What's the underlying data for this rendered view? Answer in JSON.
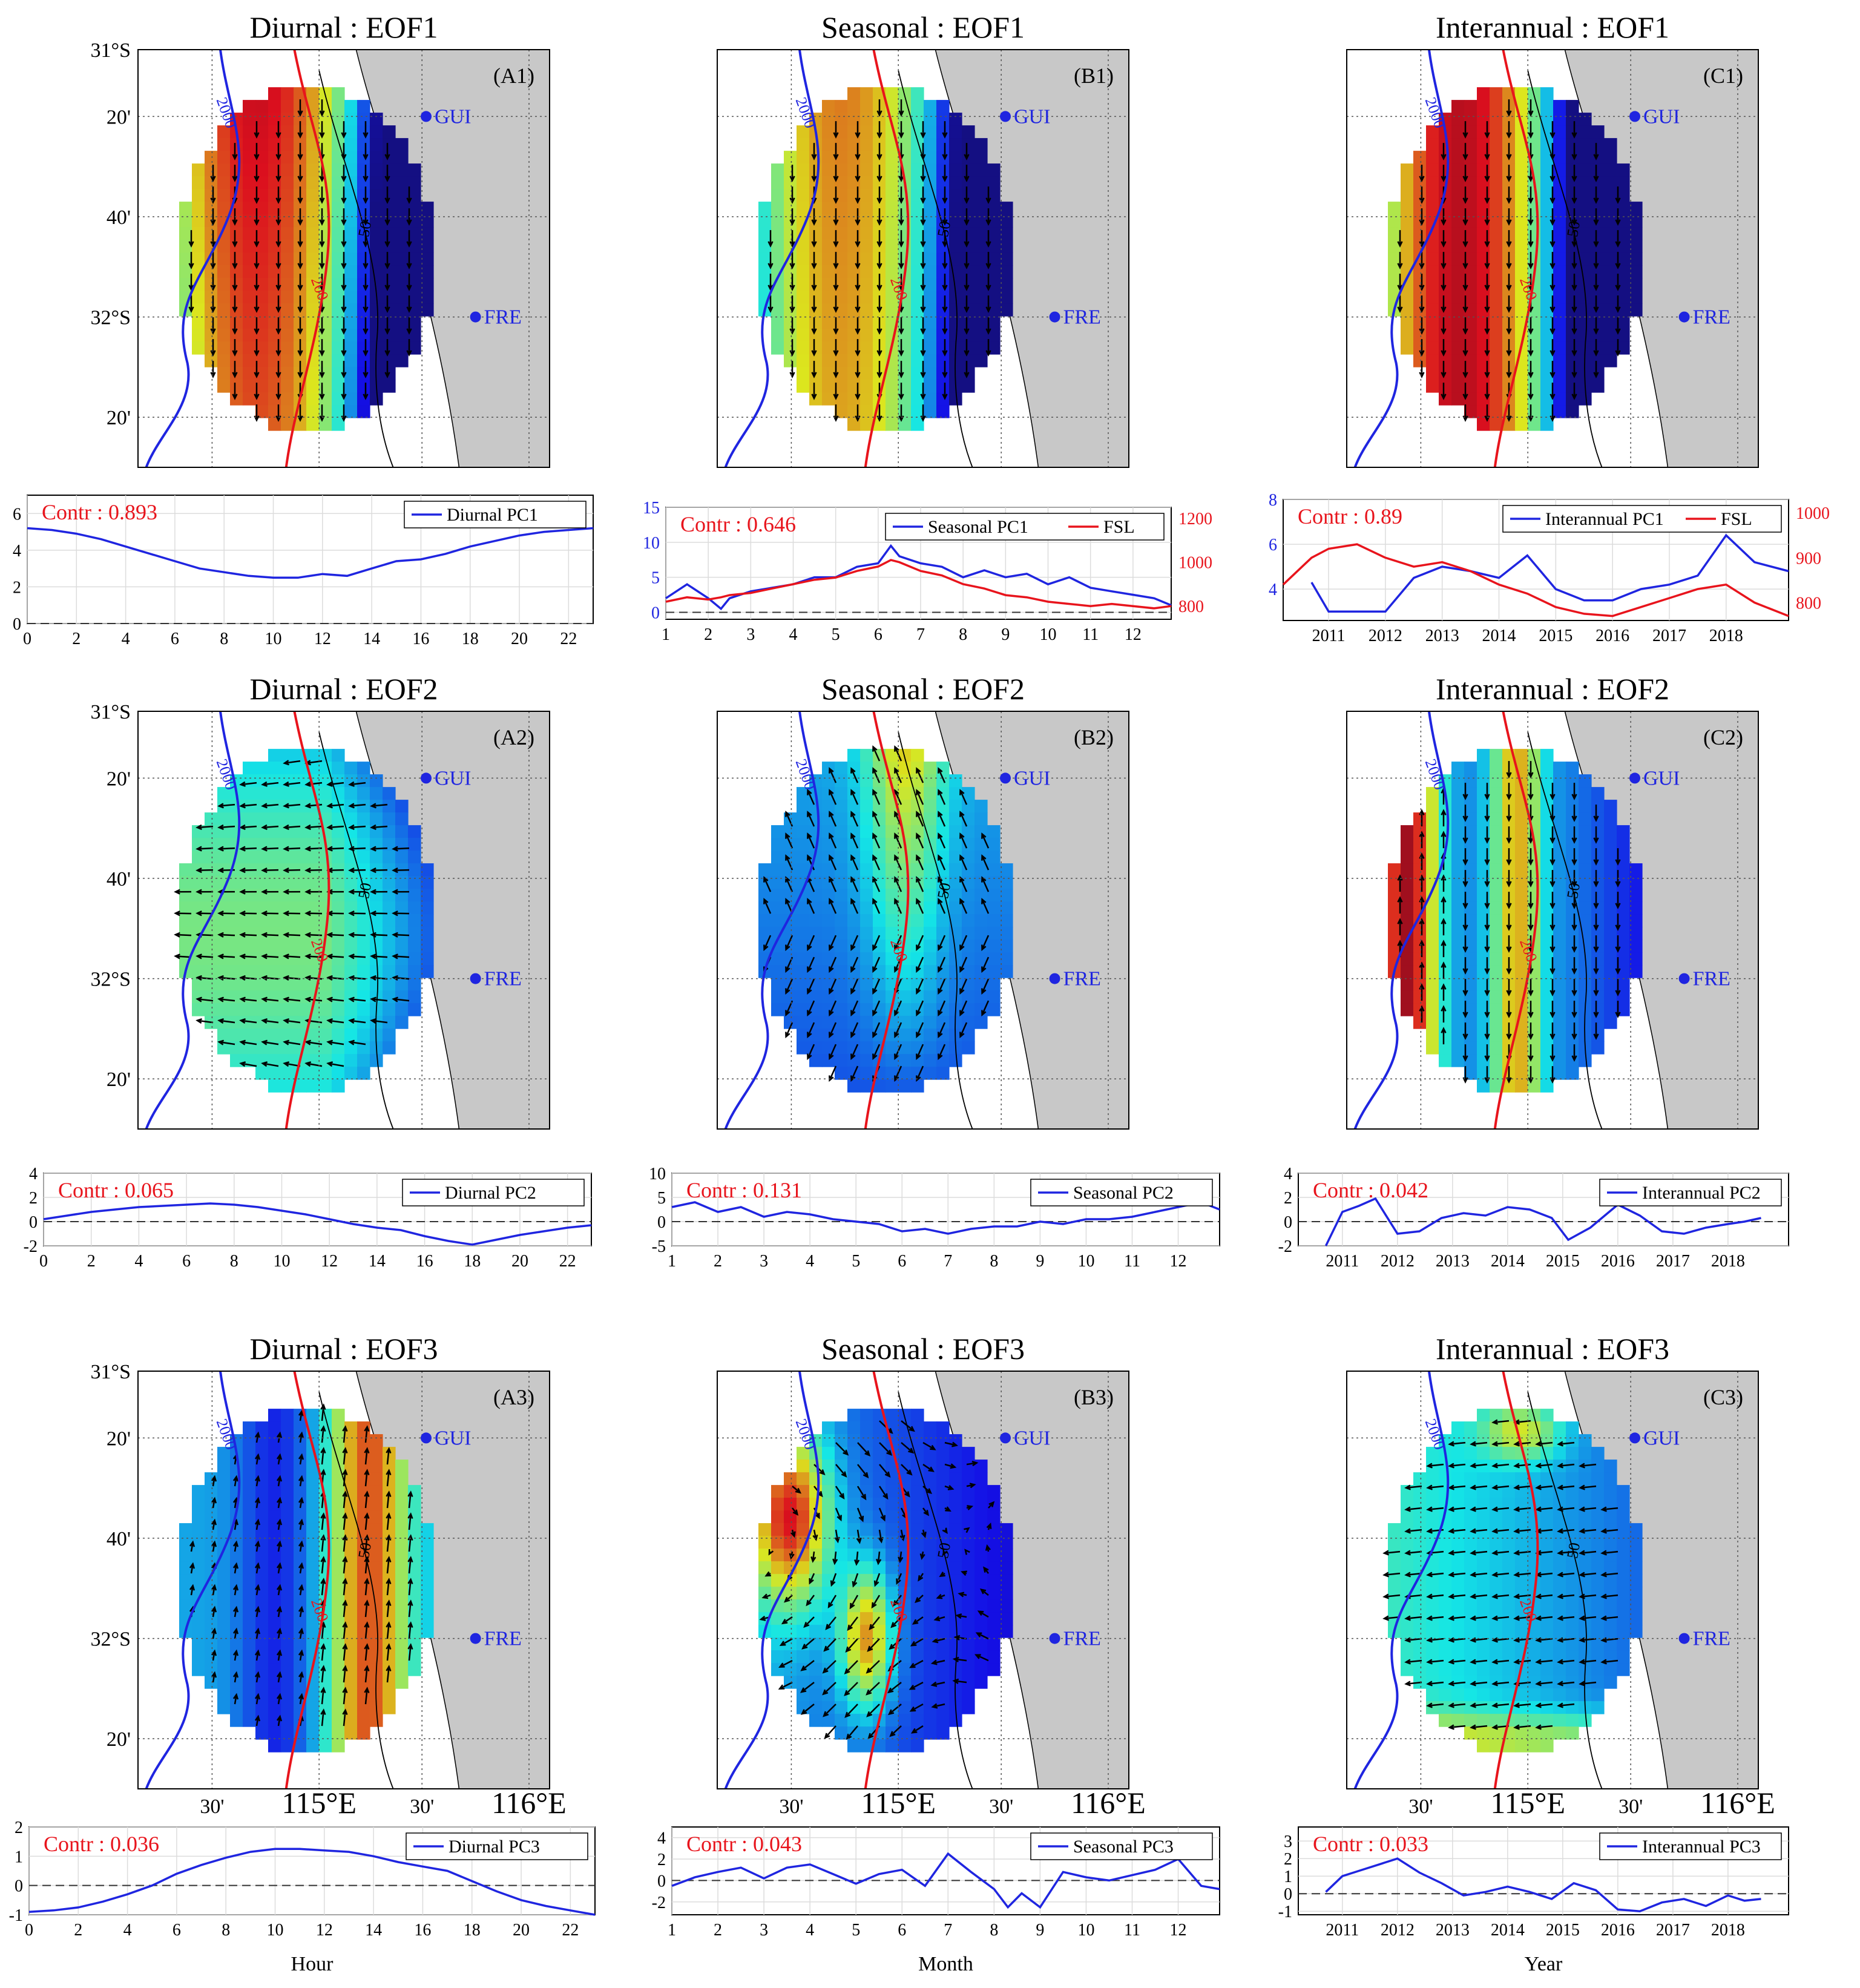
{
  "figure": {
    "map_lat_ticks": [
      "31°S",
      "20'",
      "40'",
      "32°S",
      "20'"
    ],
    "map_lon_ticks": [
      "30'",
      "115°E",
      "30'",
      "116°E"
    ],
    "sites": [
      "GUI",
      "FRE"
    ],
    "contours": [
      "2000",
      "200",
      "50"
    ],
    "colors": {
      "mode_line": "#1f25e0",
      "fsl_line": "#e8141c",
      "land": "#c8c8c8"
    }
  },
  "columns": [
    {
      "key": "diurnal",
      "label": "Diurnal",
      "xlabel": "Hour",
      "letter": "A"
    },
    {
      "key": "seasonal",
      "label": "Seasonal",
      "xlabel": "Month",
      "letter": "B"
    },
    {
      "key": "interannual",
      "label": "Interannual",
      "xlabel": "Year",
      "letter": "C"
    }
  ],
  "panels": {
    "A1": {
      "title": "Diurnal : EOF1",
      "tag": "(A1)"
    },
    "B1": {
      "title": "Seasonal : EOF1",
      "tag": "(B1)"
    },
    "C1": {
      "title": "Interannual : EOF1",
      "tag": "(C1)"
    },
    "A2": {
      "title": "Diurnal : EOF2",
      "tag": "(A2)"
    },
    "B2": {
      "title": "Seasonal : EOF2",
      "tag": "(B2)"
    },
    "C2": {
      "title": "Interannual : EOF2",
      "tag": "(C2)"
    },
    "A3": {
      "title": "Diurnal : EOF3",
      "tag": "(A3)"
    },
    "B3": {
      "title": "Seasonal : EOF3",
      "tag": "(B3)"
    },
    "C3": {
      "title": "Interannual : EOF3",
      "tag": "(C3)"
    }
  },
  "chart_data": [
    {
      "id": "A1",
      "type": "line",
      "contr": "Contr : 0.893",
      "legend": [
        "Diurnal PC1"
      ],
      "xlim": [
        0,
        23
      ],
      "xticks": [
        "0",
        "2",
        "4",
        "6",
        "8",
        "10",
        "12",
        "14",
        "16",
        "18",
        "20",
        "22"
      ],
      "xtick_vals": [
        0,
        2,
        4,
        6,
        8,
        10,
        12,
        14,
        16,
        18,
        20,
        22
      ],
      "ylim": [
        0,
        7
      ],
      "yticks": [
        "0",
        "2",
        "4",
        "6"
      ],
      "ytick_vals": [
        0,
        2,
        4,
        6
      ],
      "x": [
        0,
        1,
        2,
        3,
        4,
        5,
        6,
        7,
        8,
        9,
        10,
        11,
        12,
        13,
        14,
        15,
        16,
        17,
        18,
        19,
        20,
        21,
        22,
        23
      ],
      "series": [
        {
          "name": "Diurnal PC1",
          "values": [
            5.2,
            5.1,
            4.9,
            4.6,
            4.2,
            3.8,
            3.4,
            3.0,
            2.8,
            2.6,
            2.5,
            2.5,
            2.7,
            2.6,
            3.0,
            3.4,
            3.5,
            3.8,
            4.2,
            4.5,
            4.8,
            5.0,
            5.1,
            5.2
          ]
        }
      ]
    },
    {
      "id": "B1",
      "type": "line",
      "contr": "Contr : 0.646",
      "legend": [
        "Seasonal PC1",
        "FSL"
      ],
      "xlim": [
        1,
        12.9
      ],
      "xticks": [
        "1",
        "2",
        "3",
        "4",
        "5",
        "6",
        "7",
        "8",
        "9",
        "10",
        "11",
        "12"
      ],
      "xtick_vals": [
        1,
        2,
        3,
        4,
        5,
        6,
        7,
        8,
        9,
        10,
        11,
        12
      ],
      "ylim": [
        -1,
        15
      ],
      "yticks": [
        "0",
        "5",
        "10",
        "15"
      ],
      "ytick_vals": [
        0,
        5,
        10,
        15
      ],
      "y2lim": [
        740,
        1250
      ],
      "y2ticks": [
        "800",
        "1000",
        "1200"
      ],
      "y2tick_vals": [
        800,
        1000,
        1200
      ],
      "x": [
        1,
        1.5,
        2,
        2.3,
        2.5,
        3,
        3.5,
        4,
        4.5,
        5,
        5.5,
        6,
        6.3,
        6.5,
        7,
        7.5,
        8,
        8.5,
        9,
        9.5,
        10,
        10.5,
        11,
        11.5,
        12,
        12.5,
        12.9
      ],
      "series": [
        {
          "name": "Seasonal PC1",
          "values": [
            2,
            4,
            2,
            0.5,
            2,
            3,
            3.5,
            4,
            5,
            5,
            6.5,
            7,
            9.5,
            8,
            7,
            6.5,
            5,
            6,
            5,
            5.5,
            4,
            5,
            3.5,
            3,
            2.5,
            2,
            1
          ]
        },
        {
          "name": "FSL",
          "values": [
            820,
            840,
            830,
            840,
            850,
            860,
            880,
            900,
            920,
            930,
            960,
            980,
            1010,
            1000,
            960,
            940,
            900,
            880,
            850,
            840,
            820,
            810,
            800,
            810,
            800,
            790,
            800
          ]
        }
      ]
    },
    {
      "id": "C1",
      "type": "line",
      "contr": "Contr : 0.89",
      "legend": [
        "Interannual PC1",
        "FSL"
      ],
      "xlim": [
        2010.2,
        2019.1
      ],
      "xticks": [
        "2011",
        "2012",
        "2013",
        "2014",
        "2015",
        "2016",
        "2017",
        "2018"
      ],
      "xtick_vals": [
        2011,
        2012,
        2013,
        2014,
        2015,
        2016,
        2017,
        2018
      ],
      "ylim": [
        2.6,
        8
      ],
      "yticks": [
        "4",
        "6",
        "8"
      ],
      "ytick_vals": [
        4,
        6,
        8
      ],
      "y2lim": [
        760,
        1030
      ],
      "y2ticks": [
        "800",
        "900",
        "1000"
      ],
      "y2tick_vals": [
        800,
        900,
        1000
      ],
      "x": [
        2010.2,
        2010.7,
        2011,
        2011.5,
        2012,
        2012.5,
        2013,
        2013.5,
        2014,
        2014.5,
        2015,
        2015.5,
        2016,
        2016.5,
        2017,
        2017.5,
        2018,
        2018.5,
        2019.1
      ],
      "series": [
        {
          "name": "Interannual PC1",
          "values": [
            null,
            4.3,
            3.0,
            3.0,
            3.0,
            4.5,
            5.0,
            4.8,
            4.5,
            5.5,
            4.0,
            3.5,
            3.5,
            4.0,
            4.2,
            4.6,
            6.4,
            5.2,
            4.8
          ]
        },
        {
          "name": "FSL",
          "values": [
            840,
            900,
            920,
            930,
            900,
            880,
            890,
            870,
            840,
            820,
            790,
            775,
            770,
            790,
            810,
            830,
            840,
            800,
            770
          ]
        }
      ]
    },
    {
      "id": "A2",
      "type": "line",
      "contr": "Contr : 0.065",
      "legend": [
        "Diurnal PC2"
      ],
      "xlim": [
        0,
        23
      ],
      "xticks": [
        "0",
        "2",
        "4",
        "6",
        "8",
        "10",
        "12",
        "14",
        "16",
        "18",
        "20",
        "22"
      ],
      "xtick_vals": [
        0,
        2,
        4,
        6,
        8,
        10,
        12,
        14,
        16,
        18,
        20,
        22
      ],
      "ylim": [
        -2,
        4
      ],
      "yticks": [
        "-2",
        "0",
        "2",
        "4"
      ],
      "ytick_vals": [
        -2,
        0,
        2,
        4
      ],
      "x": [
        0,
        1,
        2,
        3,
        4,
        5,
        6,
        7,
        8,
        9,
        10,
        11,
        12,
        13,
        14,
        15,
        16,
        17,
        18,
        19,
        20,
        21,
        22,
        23
      ],
      "series": [
        {
          "name": "Diurnal PC2",
          "values": [
            0.2,
            0.5,
            0.8,
            1.0,
            1.2,
            1.3,
            1.4,
            1.5,
            1.4,
            1.2,
            0.9,
            0.6,
            0.2,
            -0.2,
            -0.5,
            -0.7,
            -1.2,
            -1.6,
            -1.9,
            -1.5,
            -1.1,
            -0.8,
            -0.5,
            -0.3
          ]
        }
      ]
    },
    {
      "id": "B2",
      "type": "line",
      "contr": "Contr : 0.131",
      "legend": [
        "Seasonal PC2"
      ],
      "xlim": [
        1,
        12.9
      ],
      "xticks": [
        "1",
        "2",
        "3",
        "4",
        "5",
        "6",
        "7",
        "8",
        "9",
        "10",
        "11",
        "12"
      ],
      "xtick_vals": [
        1,
        2,
        3,
        4,
        5,
        6,
        7,
        8,
        9,
        10,
        11,
        12
      ],
      "ylim": [
        -5,
        10
      ],
      "yticks": [
        "-5",
        "0",
        "5",
        "10"
      ],
      "ytick_vals": [
        -5,
        0,
        5,
        10
      ],
      "x": [
        1,
        1.5,
        2,
        2.5,
        3,
        3.5,
        4,
        4.5,
        5,
        5.5,
        6,
        6.5,
        7,
        7.5,
        8,
        8.5,
        9,
        9.5,
        10,
        10.5,
        11,
        11.5,
        12,
        12.5,
        12.9
      ],
      "series": [
        {
          "name": "Seasonal PC2",
          "values": [
            3,
            4,
            2,
            3,
            1,
            2,
            1.5,
            0.5,
            0,
            -0.5,
            -2,
            -1.5,
            -2.5,
            -1.5,
            -1,
            -1,
            0,
            -0.5,
            0.5,
            0.5,
            1,
            2,
            3,
            4,
            2.5
          ]
        }
      ]
    },
    {
      "id": "C2",
      "type": "line",
      "contr": "Contr : 0.042",
      "legend": [
        "Interannual PC2"
      ],
      "xlim": [
        2010.2,
        2019.1
      ],
      "xticks": [
        "2011",
        "2012",
        "2013",
        "2014",
        "2015",
        "2016",
        "2017",
        "2018"
      ],
      "xtick_vals": [
        2011,
        2012,
        2013,
        2014,
        2015,
        2016,
        2017,
        2018
      ],
      "ylim": [
        -2,
        4
      ],
      "yticks": [
        "-2",
        "0",
        "2",
        "4"
      ],
      "ytick_vals": [
        -2,
        0,
        2,
        4
      ],
      "x": [
        2010.7,
        2011,
        2011.3,
        2011.6,
        2012,
        2012.4,
        2012.8,
        2013.2,
        2013.6,
        2014,
        2014.4,
        2014.8,
        2015.1,
        2015.5,
        2016,
        2016.4,
        2016.8,
        2017.2,
        2017.6,
        2018,
        2018.3,
        2018.6
      ],
      "series": [
        {
          "name": "Interannual PC2",
          "values": [
            -2,
            0.8,
            1.3,
            1.9,
            -1.0,
            -0.8,
            0.3,
            0.7,
            0.5,
            1.2,
            1.0,
            0.3,
            -1.5,
            -0.5,
            1.4,
            0.5,
            -0.8,
            -1.0,
            -0.5,
            -0.2,
            0.0,
            0.3
          ]
        }
      ]
    },
    {
      "id": "A3",
      "type": "line",
      "contr": "Contr : 0.036",
      "legend": [
        "Diurnal PC3"
      ],
      "xlim": [
        0,
        23
      ],
      "xticks": [
        "0",
        "2",
        "4",
        "6",
        "8",
        "10",
        "12",
        "14",
        "16",
        "18",
        "20",
        "22"
      ],
      "xtick_vals": [
        0,
        2,
        4,
        6,
        8,
        10,
        12,
        14,
        16,
        18,
        20,
        22
      ],
      "ylim": [
        -1,
        2
      ],
      "yticks": [
        "-1",
        "0",
        "1",
        "2"
      ],
      "ytick_vals": [
        -1,
        0,
        1,
        2
      ],
      "x": [
        0,
        1,
        2,
        3,
        4,
        5,
        6,
        7,
        8,
        9,
        10,
        11,
        12,
        13,
        14,
        15,
        16,
        17,
        18,
        19,
        20,
        21,
        22,
        23
      ],
      "series": [
        {
          "name": "Diurnal PC3",
          "values": [
            -0.9,
            -0.85,
            -0.75,
            -0.55,
            -0.3,
            0.0,
            0.4,
            0.7,
            0.95,
            1.15,
            1.25,
            1.25,
            1.2,
            1.15,
            1.0,
            0.8,
            0.65,
            0.5,
            0.15,
            -0.2,
            -0.5,
            -0.7,
            -0.85,
            -1.0
          ]
        }
      ]
    },
    {
      "id": "B3",
      "type": "line",
      "contr": "Contr : 0.043",
      "legend": [
        "Seasonal PC3"
      ],
      "xlim": [
        1,
        12.9
      ],
      "xticks": [
        "1",
        "2",
        "3",
        "4",
        "5",
        "6",
        "7",
        "8",
        "9",
        "10",
        "11",
        "12"
      ],
      "xtick_vals": [
        1,
        2,
        3,
        4,
        5,
        6,
        7,
        8,
        9,
        10,
        11,
        12
      ],
      "ylim": [
        -3.2,
        5
      ],
      "yticks": [
        "-2",
        "0",
        "2",
        "4"
      ],
      "ytick_vals": [
        -2,
        0,
        2,
        4
      ],
      "x": [
        1,
        1.5,
        2,
        2.5,
        3,
        3.5,
        4,
        4.5,
        5,
        5.5,
        6,
        6.5,
        7,
        7.5,
        8,
        8.3,
        8.6,
        9,
        9.5,
        10,
        10.5,
        11,
        11.5,
        12,
        12.5,
        12.9
      ],
      "series": [
        {
          "name": "Seasonal PC3",
          "values": [
            -0.5,
            0.3,
            0.8,
            1.2,
            0.2,
            1.2,
            1.5,
            0.6,
            -0.3,
            0.6,
            1.0,
            -0.5,
            2.5,
            0.8,
            -0.8,
            -2.5,
            -1.2,
            -2.5,
            0.8,
            0.3,
            0.0,
            0.5,
            1.0,
            2.0,
            -0.5,
            -0.8
          ]
        }
      ]
    },
    {
      "id": "C3",
      "type": "line",
      "contr": "Contr : 0.033",
      "legend": [
        "Interannual PC3"
      ],
      "xlim": [
        2010.2,
        2019.1
      ],
      "xticks": [
        "2011",
        "2012",
        "2013",
        "2014",
        "2015",
        "2016",
        "2017",
        "2018"
      ],
      "xtick_vals": [
        2011,
        2012,
        2013,
        2014,
        2015,
        2016,
        2017,
        2018
      ],
      "ylim": [
        -1.2,
        3.8
      ],
      "yticks": [
        "-1",
        "0",
        "1",
        "2",
        "3"
      ],
      "ytick_vals": [
        -1,
        0,
        1,
        2,
        3
      ],
      "x": [
        2010.7,
        2011,
        2011.3,
        2011.7,
        2012,
        2012.4,
        2012.8,
        2013.2,
        2013.6,
        2014,
        2014.4,
        2014.8,
        2015.2,
        2015.6,
        2016,
        2016.4,
        2016.8,
        2017.2,
        2017.6,
        2018,
        2018.3,
        2018.6
      ],
      "series": [
        {
          "name": "Interannual PC3",
          "values": [
            0.1,
            1.0,
            1.3,
            1.7,
            2.0,
            1.2,
            0.6,
            -0.1,
            0.1,
            0.4,
            0.1,
            -0.3,
            0.6,
            0.2,
            -0.9,
            -1.0,
            -0.5,
            -0.3,
            -0.7,
            -0.1,
            -0.4,
            -0.3
          ]
        }
      ]
    }
  ]
}
